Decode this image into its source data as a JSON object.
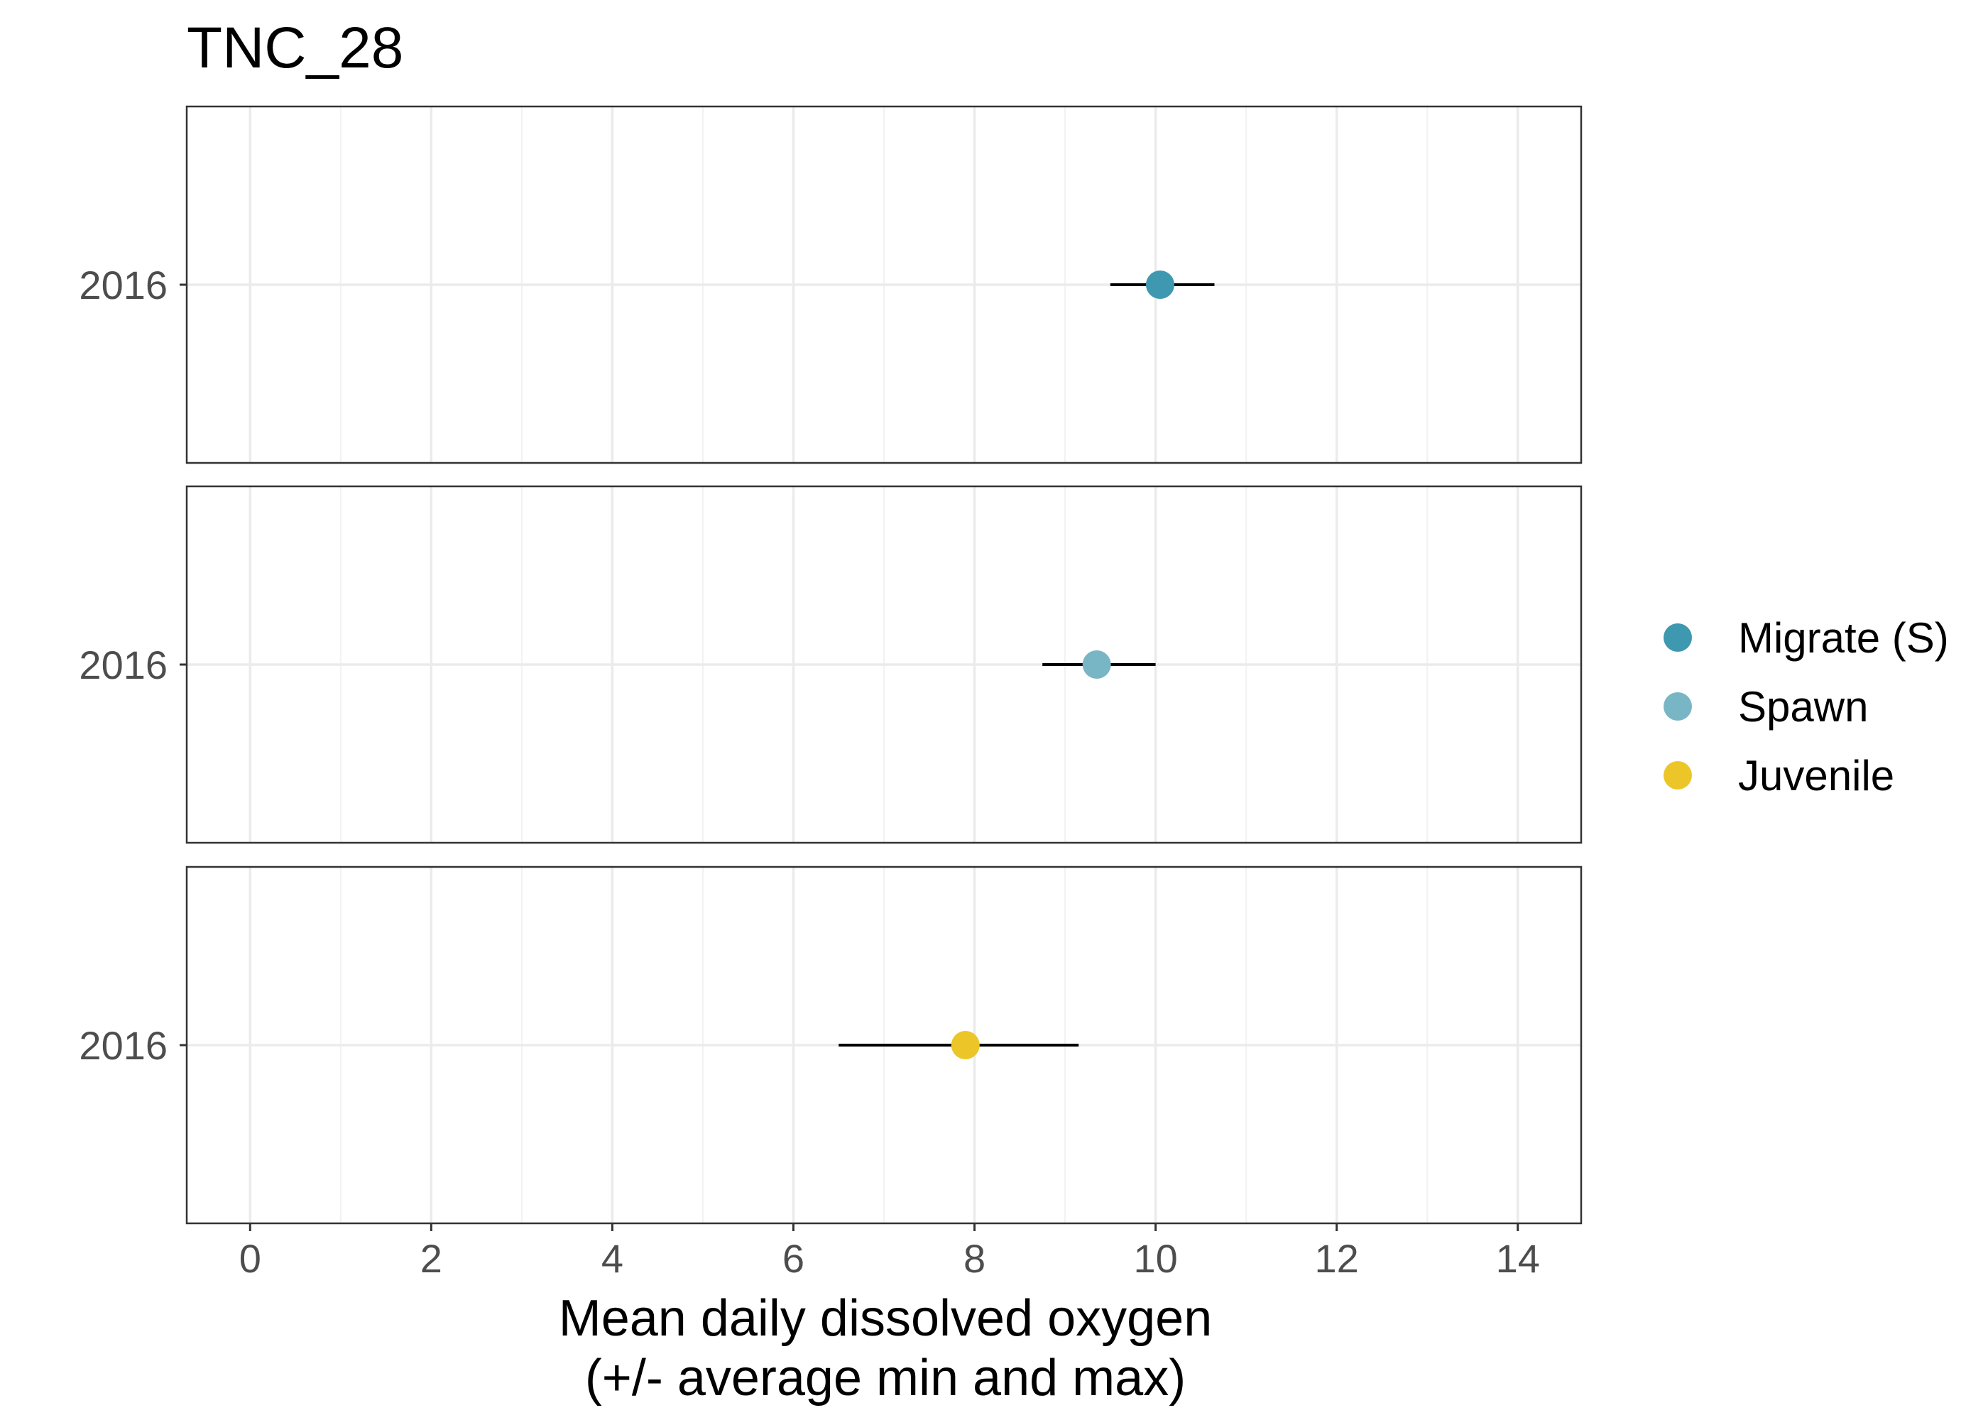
{
  "chart_data": {
    "type": "scatter",
    "title": "TNC_28",
    "xlabel_lines": [
      "Mean daily dissolved oxygen",
      "(+/- average min and max)"
    ],
    "ylabel": "",
    "xlim": [
      -0.7,
      14.7
    ],
    "xticks": [
      0,
      2,
      4,
      6,
      8,
      10,
      12,
      14
    ],
    "xtick_labels": [
      "0",
      "2",
      "4",
      "6",
      "8",
      "10",
      "12",
      "14"
    ],
    "grid": true,
    "legend_position": "right",
    "panels": [
      {
        "series": "Migrate (S)",
        "color": "#3d98b0",
        "y_label": "2016",
        "mean": 10.05,
        "min": 9.5,
        "max": 10.65
      },
      {
        "series": "Spawn",
        "color": "#79b6c5",
        "y_label": "2016",
        "mean": 9.35,
        "min": 8.75,
        "max": 10.0
      },
      {
        "series": "Juvenile",
        "color": "#ecc628",
        "y_label": "2016",
        "mean": 7.9,
        "min": 6.5,
        "max": 9.15
      }
    ],
    "legend": [
      {
        "label": "Migrate (S)",
        "color": "#3d98b0"
      },
      {
        "label": "Spawn",
        "color": "#79b6c5"
      },
      {
        "label": "Juvenile",
        "color": "#ecc628"
      }
    ]
  }
}
